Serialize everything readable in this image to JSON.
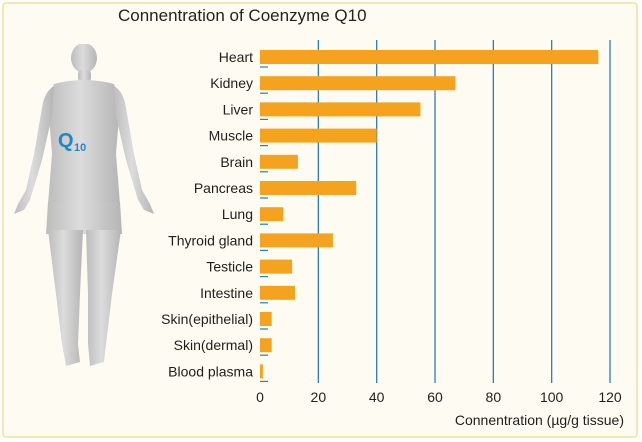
{
  "chart_data": {
    "type": "bar",
    "orientation": "horizontal",
    "title": "Connentration of Coenzyme Q10",
    "xlabel": "Connentration (µg/g tissue)",
    "ylabel": "",
    "categories": [
      "Heart",
      "Kidney",
      "Liver",
      "Muscle",
      "Brain",
      "Pancreas",
      "Lung",
      "Thyroid gland",
      "Testicle",
      "Intestine",
      "Skin(epithelial)",
      "Skin(dermal)",
      "Blood plasma"
    ],
    "values": [
      116,
      67,
      55,
      40,
      13,
      33,
      8,
      25,
      11,
      12,
      4,
      4,
      1
    ],
    "xlim": [
      0,
      120
    ],
    "xticks": [
      "0",
      "20",
      "40",
      "60",
      "80",
      "100",
      "120"
    ],
    "grid": "vertical",
    "bar_color": "#f5a21e",
    "grid_color": "#2a7fb5"
  },
  "figure": {
    "label_main": "Q",
    "label_sub": "10",
    "body_color": "#c9c9c9",
    "label_color": "#1e87c8"
  }
}
